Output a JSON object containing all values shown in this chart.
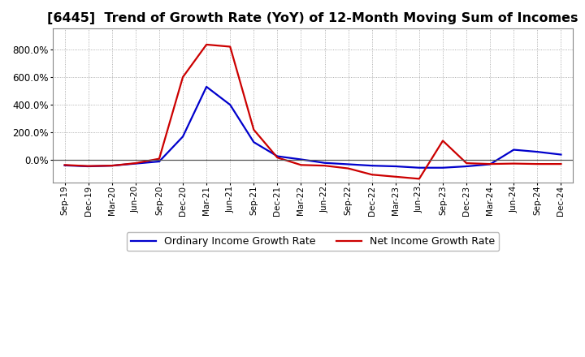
{
  "title": "[6445]  Trend of Growth Rate (YoY) of 12-Month Moving Sum of Incomes",
  "title_fontsize": 11.5,
  "background_color": "#ffffff",
  "plot_bg_color": "#ffffff",
  "grid_color": "#999999",
  "x_labels": [
    "Sep-19",
    "Dec-19",
    "Mar-20",
    "Jun-20",
    "Sep-20",
    "Dec-20",
    "Mar-21",
    "Jun-21",
    "Sep-21",
    "Dec-21",
    "Mar-22",
    "Jun-22",
    "Sep-22",
    "Dec-22",
    "Mar-23",
    "Jun-23",
    "Sep-23",
    "Dec-23",
    "Mar-24",
    "Jun-24",
    "Sep-24",
    "Dec-24"
  ],
  "ordinary_income": [
    -0.38,
    -0.45,
    -0.4,
    -0.25,
    -0.1,
    1.7,
    5.3,
    4.0,
    1.3,
    0.28,
    0.05,
    -0.2,
    -0.3,
    -0.4,
    -0.45,
    -0.55,
    -0.55,
    -0.45,
    -0.3,
    0.75,
    0.6,
    0.4
  ],
  "net_income": [
    -0.35,
    -0.43,
    -0.4,
    -0.22,
    0.1,
    6.0,
    8.35,
    8.2,
    2.2,
    0.18,
    -0.35,
    -0.4,
    -0.6,
    -1.05,
    -1.2,
    -1.35,
    1.4,
    -0.22,
    -0.28,
    -0.25,
    -0.28,
    -0.28
  ],
  "ordinary_color": "#0000cc",
  "net_color": "#cc0000",
  "line_width": 1.6,
  "ylim_min": -1.6,
  "ylim_max": 9.5,
  "yticks": [
    0.0,
    2.0,
    4.0,
    6.0,
    8.0
  ],
  "ytick_labels": [
    "0.0%",
    "200.0%",
    "400.0%",
    "600.0%",
    "800.0%"
  ],
  "legend_ordinary": "Ordinary Income Growth Rate",
  "legend_net": "Net Income Growth Rate"
}
